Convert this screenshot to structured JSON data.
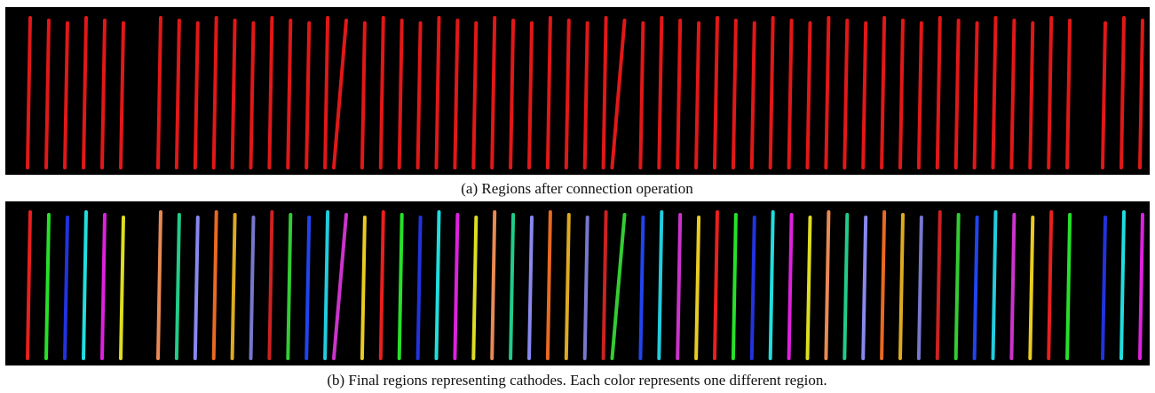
{
  "figure": {
    "panels": [
      {
        "caption": "(a) Regions after connection operation"
      },
      {
        "caption": "(b) Final regions representing cathodes. Each color represents one different region."
      }
    ]
  }
}
